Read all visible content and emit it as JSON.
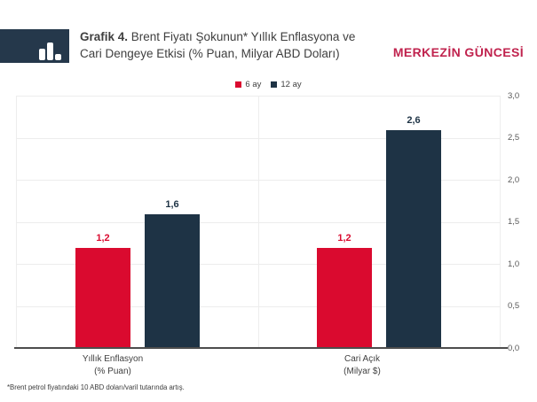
{
  "header": {
    "title_prefix": "Grafik 4.",
    "title_line1": " Brent Fiyatı Şokunun* Yıllık Enflasyona ve",
    "title_line2": "Cari Dengeye Etkisi (% Puan, Milyar ABD Doları)",
    "brand": "MERKEZİN GÜNCESİ"
  },
  "footnote": "*Brent petrol fiyatındaki 10 ABD doları/varil tutarında artış.",
  "colors": {
    "series_6ay": "#DA0A2F",
    "series_12ay": "#1E3345",
    "logo_box": "#25384B",
    "brand_red": "#C0234E",
    "grid": "#EDEDED",
    "axis_line": "#4D4D4D",
    "axis_text": "#595959",
    "title_text": "#3F3F3F"
  },
  "chart_data": {
    "type": "bar",
    "title": "Grafik 4. Brent Fiyatı Şokunun* Yıllık Enflasyona ve Cari Dengeye Etkisi (% Puan, Milyar ABD Doları)",
    "categories": [
      [
        "Yıllık Enflasyon",
        "(% Puan)"
      ],
      [
        "Cari Açık",
        "(Milyar $)"
      ]
    ],
    "series": [
      {
        "name": "6 ay",
        "color": "#DA0A2F",
        "values": [
          1.2,
          1.2
        ],
        "labels": [
          "1,2",
          "1,2"
        ]
      },
      {
        "name": "12 ay",
        "color": "#1E3345",
        "values": [
          1.6,
          2.6
        ],
        "labels": [
          "1,6",
          "2,6"
        ]
      }
    ],
    "xlabel": "",
    "ylabel": "",
    "ylim": [
      0.0,
      3.0
    ],
    "ytick_step": 0.5,
    "yticks": [
      0.0,
      0.5,
      1.0,
      1.5,
      2.0,
      2.5,
      3.0
    ],
    "ytick_labels": [
      "0,0",
      "0,5",
      "1,0",
      "1,5",
      "2,0",
      "2,5",
      "3,0"
    ],
    "yaxis_side": "right",
    "grid": true,
    "legend_position": "top",
    "decimal_separator": ","
  }
}
